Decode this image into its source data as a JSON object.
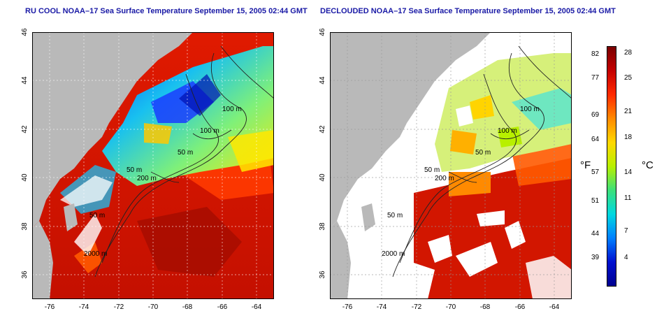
{
  "maps": [
    {
      "title": "RU COOL NOAA–17 Sea Surface Temperature September 15, 2005 02:44 GMT",
      "contour_labels": [
        "100 m",
        "100 m",
        "50 m",
        "50 m",
        "200 m",
        "50 m",
        "2000 m"
      ],
      "style": "full"
    },
    {
      "title": "DECLOUDED NOAA–17 Sea Surface Temperature September 15, 2005 02:44 GMT",
      "contour_labels": [
        "100 m",
        "100 m",
        "50 m",
        "50 m",
        "200 m",
        "50 m",
        "2000 m"
      ],
      "style": "declouded"
    }
  ],
  "axes": {
    "x_ticks": [
      "-76",
      "-74",
      "-72",
      "-70",
      "-68",
      "-66",
      "-64"
    ],
    "y_ticks": [
      "36",
      "38",
      "40",
      "42",
      "44",
      "46"
    ],
    "lon_range": [
      -77,
      -63
    ],
    "lat_range": [
      35,
      46
    ]
  },
  "colorbar": {
    "fahrenheit_label": "°F",
    "celsius_label": "°C",
    "fahrenheit_ticks": [
      "82",
      "77",
      "69",
      "64",
      "57",
      "51",
      "44",
      "39"
    ],
    "celsius_ticks": [
      "28",
      "25",
      "21",
      "18",
      "14",
      "11",
      "7",
      "4"
    ],
    "colors": [
      "#7a0000",
      "#c40000",
      "#ff2a00",
      "#ff8a00",
      "#ffd800",
      "#b8f000",
      "#3ce07a",
      "#00d8e0",
      "#0080ff",
      "#0010d0",
      "#000090"
    ]
  },
  "colors": {
    "land": "#b9b9b9",
    "water_cold": "#23b7e6",
    "water_warm": "#d61d00",
    "no_data": "#ffffff",
    "title": "#1a1aa6"
  }
}
